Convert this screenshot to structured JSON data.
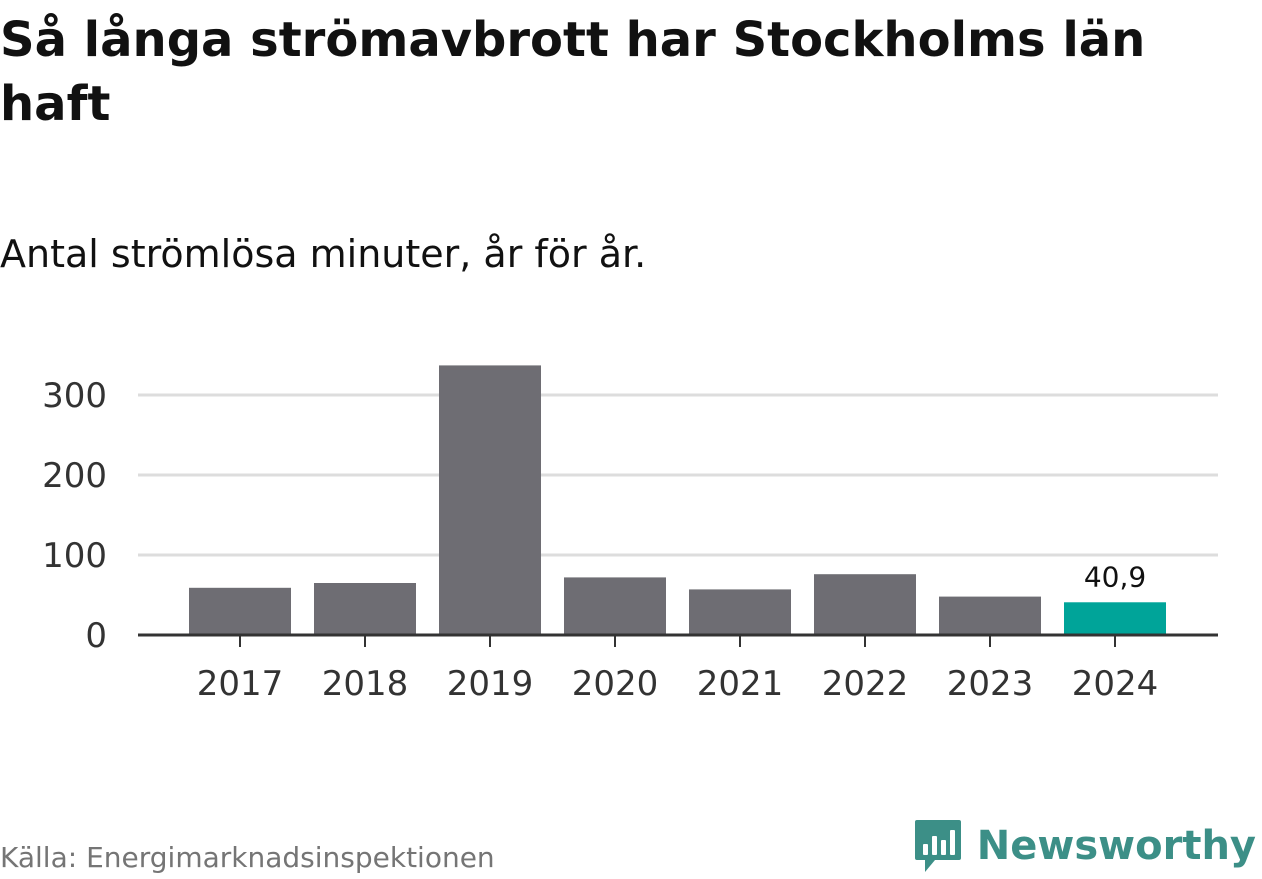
{
  "header": {
    "title": "Så långa strömavbrott har Stockholms län haft",
    "subtitle": "Antal strömlösa minuter, år för år."
  },
  "footer": {
    "source": "Källa: Energimarknadsinspektionen",
    "brand": "Newsworthy",
    "brand_icon": "bar-chart-speech-bubble-icon"
  },
  "colors": {
    "bar_default": "#6e6d73",
    "bar_highlight": "#00a499",
    "gridline": "#dddddd",
    "axis": "#333333",
    "brand": "#3c8f87"
  },
  "chart_data": {
    "type": "bar",
    "title": "Så långa strömavbrott har Stockholms län haft",
    "subtitle": "Antal strömlösa minuter, år för år.",
    "xlabel": "",
    "ylabel": "",
    "categories": [
      "2017",
      "2018",
      "2019",
      "2020",
      "2021",
      "2022",
      "2023",
      "2024"
    ],
    "values": [
      59,
      65,
      337,
      72,
      57,
      76,
      48,
      40.9
    ],
    "highlight_index": 7,
    "data_labels": [
      {
        "index": 7,
        "text": "40,9"
      }
    ],
    "ylim": [
      0,
      350
    ],
    "yticks": [
      0,
      100,
      200,
      300
    ],
    "ytick_labels": [
      "0",
      "100",
      "200",
      "300"
    ],
    "grid": true,
    "legend": "none"
  }
}
